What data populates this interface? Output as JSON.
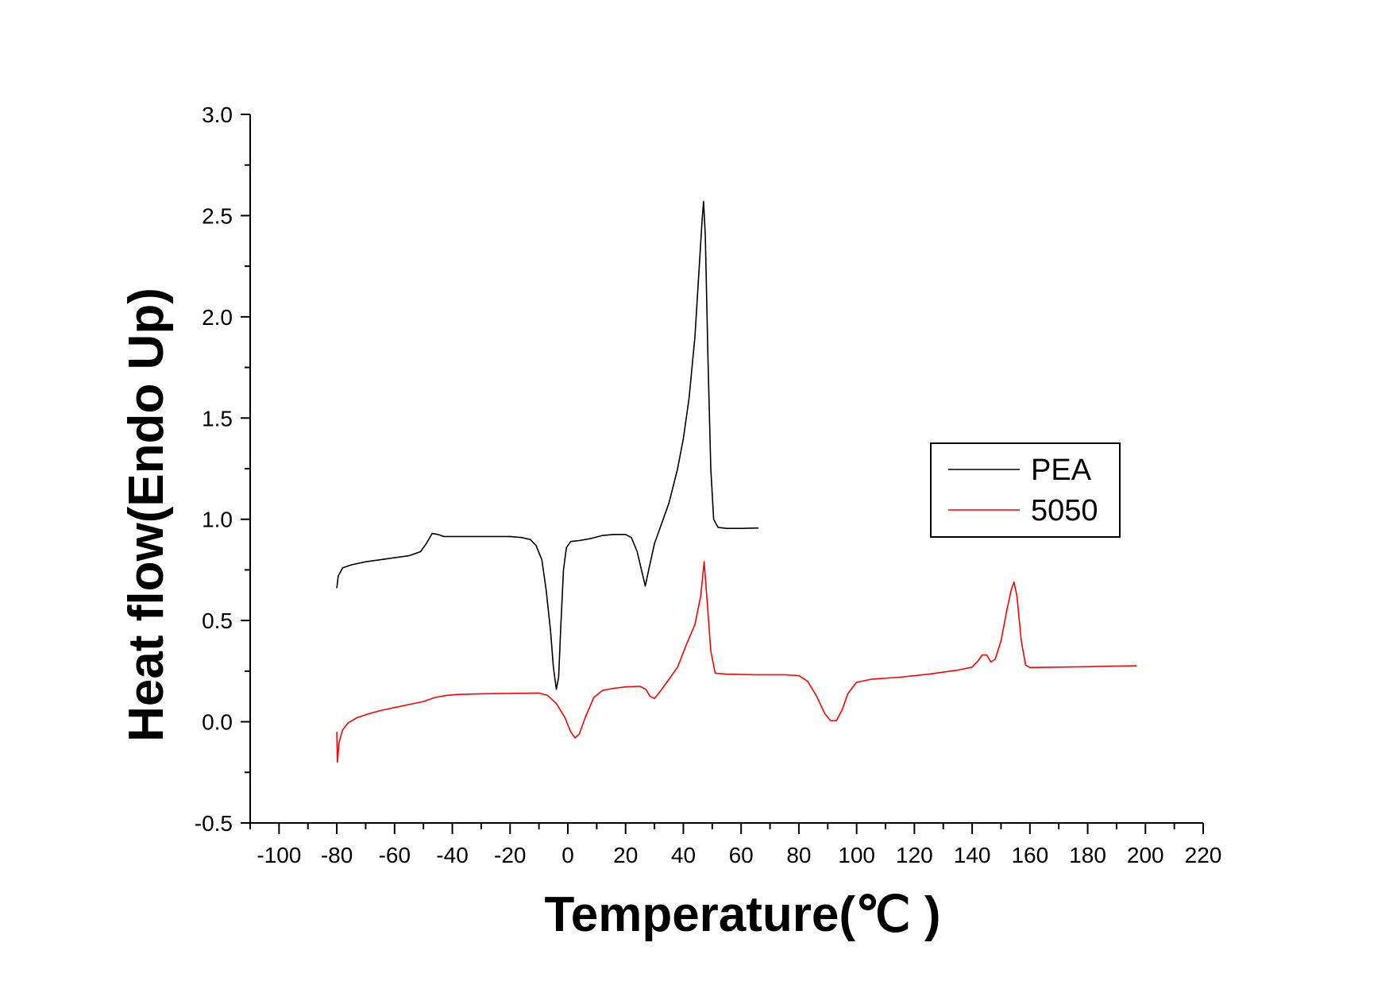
{
  "chart_data": {
    "type": "line",
    "title": "",
    "xlabel": "Temperature(℃ )",
    "ylabel": "Heat flow(Endo Up)",
    "xlim": [
      -110,
      220
    ],
    "ylim": [
      -0.5,
      3.0
    ],
    "x_ticks": [
      -100,
      -80,
      -60,
      -40,
      -20,
      0,
      20,
      40,
      60,
      80,
      100,
      120,
      140,
      160,
      180,
      200,
      220
    ],
    "x_tick_labels": [
      "-100",
      "-80",
      "-60",
      "-40",
      "-20",
      "0",
      "20",
      "40",
      "60",
      "80",
      "100",
      "120",
      "140",
      "160",
      "180",
      "200",
      "220"
    ],
    "y_ticks": [
      -0.5,
      0.0,
      0.5,
      1.0,
      1.5,
      2.0,
      2.5,
      3.0
    ],
    "y_tick_labels": [
      "-0.5",
      "0.0",
      "0.5",
      "1.0",
      "1.5",
      "2.0",
      "2.5",
      "3.0"
    ],
    "grid": false,
    "legend_position": "right",
    "series": [
      {
        "name": "PEA",
        "color": "#000000",
        "points": [
          [
            -80,
            0.66
          ],
          [
            -79.5,
            0.72
          ],
          [
            -78,
            0.76
          ],
          [
            -75,
            0.775
          ],
          [
            -70,
            0.79
          ],
          [
            -65,
            0.8
          ],
          [
            -60,
            0.81
          ],
          [
            -55,
            0.82
          ],
          [
            -51,
            0.84
          ],
          [
            -49,
            0.88
          ],
          [
            -47,
            0.93
          ],
          [
            -45,
            0.925
          ],
          [
            -43,
            0.915
          ],
          [
            -40,
            0.915
          ],
          [
            -35,
            0.915
          ],
          [
            -30,
            0.915
          ],
          [
            -25,
            0.915
          ],
          [
            -20,
            0.915
          ],
          [
            -16,
            0.91
          ],
          [
            -13,
            0.9
          ],
          [
            -11,
            0.87
          ],
          [
            -9,
            0.8
          ],
          [
            -7.5,
            0.65
          ],
          [
            -6,
            0.45
          ],
          [
            -5,
            0.27
          ],
          [
            -4,
            0.16
          ],
          [
            -3.2,
            0.22
          ],
          [
            -2.5,
            0.45
          ],
          [
            -1.5,
            0.75
          ],
          [
            -0.5,
            0.86
          ],
          [
            1,
            0.89
          ],
          [
            4,
            0.895
          ],
          [
            8,
            0.905
          ],
          [
            12,
            0.92
          ],
          [
            16,
            0.925
          ],
          [
            20,
            0.925
          ],
          [
            22,
            0.91
          ],
          [
            24,
            0.84
          ],
          [
            25.5,
            0.75
          ],
          [
            26.8,
            0.67
          ],
          [
            28,
            0.75
          ],
          [
            30,
            0.88
          ],
          [
            32,
            0.96
          ],
          [
            35,
            1.08
          ],
          [
            38,
            1.25
          ],
          [
            40,
            1.4
          ],
          [
            42,
            1.6
          ],
          [
            44,
            1.9
          ],
          [
            45.5,
            2.25
          ],
          [
            46.5,
            2.48
          ],
          [
            47,
            2.57
          ],
          [
            47.6,
            2.4
          ],
          [
            48.5,
            1.8
          ],
          [
            49.5,
            1.25
          ],
          [
            50.5,
            1.0
          ],
          [
            52,
            0.96
          ],
          [
            55,
            0.955
          ],
          [
            60,
            0.955
          ],
          [
            66,
            0.957
          ]
        ]
      },
      {
        "name": "5050",
        "color": "#ff0000",
        "points": [
          [
            -80,
            -0.05
          ],
          [
            -79.8,
            -0.2
          ],
          [
            -79.2,
            -0.1
          ],
          [
            -78,
            -0.04
          ],
          [
            -76,
            -0.005
          ],
          [
            -73,
            0.02
          ],
          [
            -70,
            0.035
          ],
          [
            -65,
            0.055
          ],
          [
            -60,
            0.07
          ],
          [
            -55,
            0.085
          ],
          [
            -50,
            0.1
          ],
          [
            -46,
            0.12
          ],
          [
            -42,
            0.13
          ],
          [
            -38,
            0.135
          ],
          [
            -30,
            0.138
          ],
          [
            -20,
            0.14
          ],
          [
            -10,
            0.142
          ],
          [
            -7,
            0.13
          ],
          [
            -4,
            0.09
          ],
          [
            -1,
            0.02
          ],
          [
            1,
            -0.05
          ],
          [
            2.5,
            -0.08
          ],
          [
            4,
            -0.06
          ],
          [
            6,
            0.02
          ],
          [
            9,
            0.12
          ],
          [
            12,
            0.155
          ],
          [
            16,
            0.165
          ],
          [
            20,
            0.172
          ],
          [
            25,
            0.175
          ],
          [
            27,
            0.16
          ],
          [
            28.5,
            0.125
          ],
          [
            30,
            0.115
          ],
          [
            32,
            0.15
          ],
          [
            35,
            0.21
          ],
          [
            38,
            0.27
          ],
          [
            41,
            0.38
          ],
          [
            44,
            0.48
          ],
          [
            46,
            0.62
          ],
          [
            47.2,
            0.79
          ],
          [
            48.2,
            0.6
          ],
          [
            49.5,
            0.35
          ],
          [
            51,
            0.24
          ],
          [
            55,
            0.235
          ],
          [
            65,
            0.232
          ],
          [
            75,
            0.232
          ],
          [
            80,
            0.228
          ],
          [
            83,
            0.2
          ],
          [
            86,
            0.13
          ],
          [
            89,
            0.04
          ],
          [
            91,
            0.005
          ],
          [
            93,
            0.005
          ],
          [
            95,
            0.06
          ],
          [
            97,
            0.14
          ],
          [
            100,
            0.195
          ],
          [
            105,
            0.21
          ],
          [
            115,
            0.22
          ],
          [
            125,
            0.235
          ],
          [
            135,
            0.255
          ],
          [
            140,
            0.27
          ],
          [
            142,
            0.3
          ],
          [
            143.5,
            0.33
          ],
          [
            145,
            0.33
          ],
          [
            146.5,
            0.295
          ],
          [
            148,
            0.31
          ],
          [
            150,
            0.4
          ],
          [
            152,
            0.55
          ],
          [
            153.5,
            0.65
          ],
          [
            154.5,
            0.69
          ],
          [
            155.5,
            0.62
          ],
          [
            157,
            0.4
          ],
          [
            158.5,
            0.28
          ],
          [
            160,
            0.268
          ],
          [
            170,
            0.27
          ],
          [
            180,
            0.272
          ],
          [
            190,
            0.275
          ],
          [
            197,
            0.276
          ]
        ]
      }
    ]
  }
}
